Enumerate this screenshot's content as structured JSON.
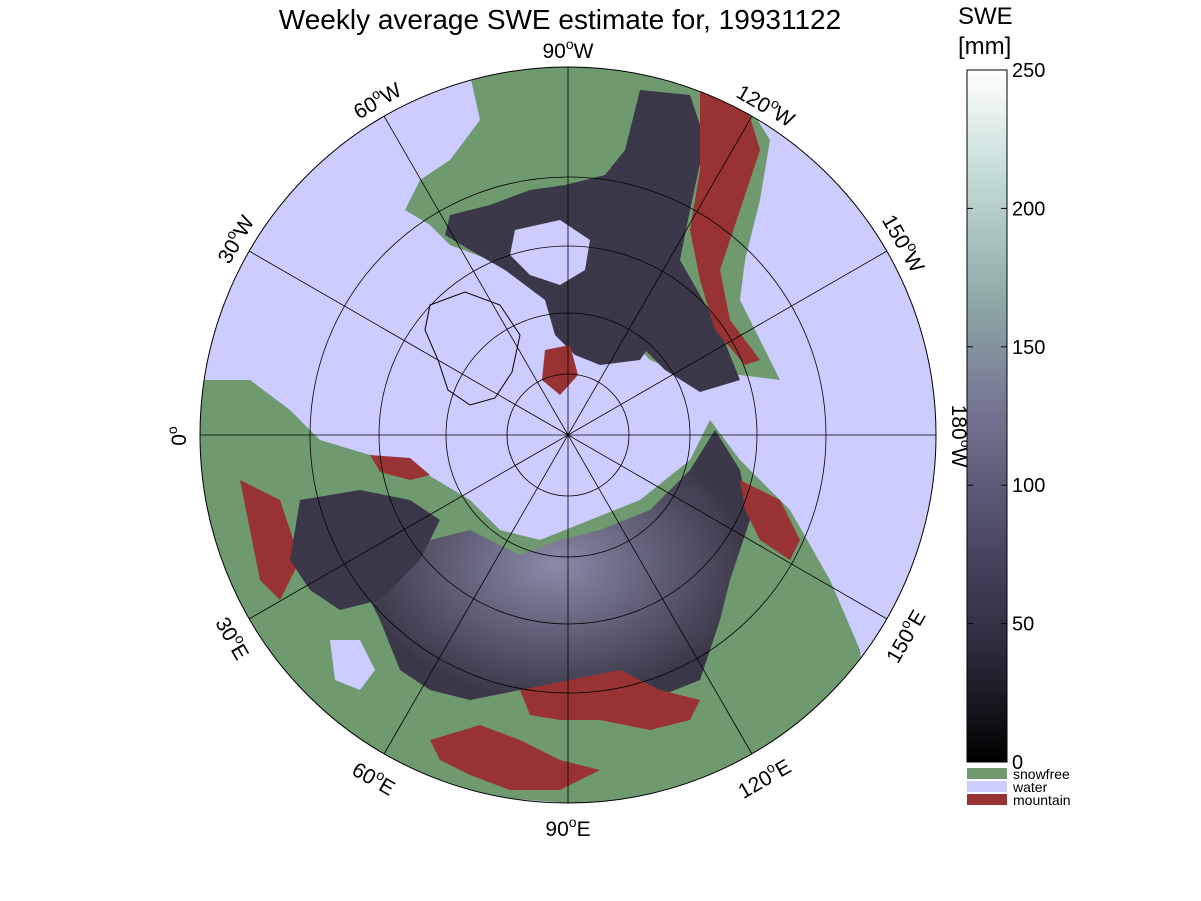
{
  "title": "Weekly average SWE estimate for, 19931122",
  "colorbar": {
    "title_line1": "SWE",
    "title_line2": "[mm]",
    "min": 0,
    "max": 250,
    "ticks": [
      "0",
      "50",
      "100",
      "150",
      "200",
      "250"
    ],
    "categories": [
      {
        "label": "snowfree",
        "color": "#6f9a6f"
      },
      {
        "label": "water",
        "color": "#ccccff"
      },
      {
        "label": "mountain",
        "color": "#993333"
      }
    ],
    "gradient": [
      "#000000",
      "#2a2838",
      "#4d4b66",
      "#727290",
      "#8faaa8",
      "#c4dcd8",
      "#ffffff"
    ]
  },
  "map": {
    "projection": "north polar stereographic",
    "ocean_color": "#ccccff",
    "snowfree_color": "#6f9a6f",
    "mountain_color": "#993333",
    "snow_color": "#3a3848",
    "longitude_labels": [
      {
        "deg": "0",
        "unit": "o",
        "suffix": ""
      },
      {
        "deg": "30",
        "unit": "o",
        "suffix": "W"
      },
      {
        "deg": "60",
        "unit": "o",
        "suffix": "W"
      },
      {
        "deg": "90",
        "unit": "o",
        "suffix": "W"
      },
      {
        "deg": "120",
        "unit": "o",
        "suffix": "W"
      },
      {
        "deg": "150",
        "unit": "o",
        "suffix": "W"
      },
      {
        "deg": "180",
        "unit": "o",
        "suffix": "W"
      },
      {
        "deg": "150",
        "unit": "o",
        "suffix": "E"
      },
      {
        "deg": "120",
        "unit": "o",
        "suffix": "E"
      },
      {
        "deg": "90",
        "unit": "o",
        "suffix": "E"
      },
      {
        "deg": "60",
        "unit": "o",
        "suffix": "E"
      },
      {
        "deg": "30",
        "unit": "o",
        "suffix": "E"
      }
    ]
  }
}
